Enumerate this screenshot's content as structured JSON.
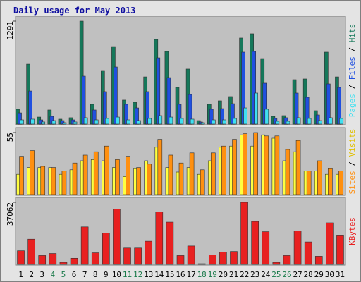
{
  "chart_data": {
    "type": "bar",
    "title": "Daily usage for May 2013",
    "categories": [
      "1",
      "2",
      "3",
      "4",
      "5",
      "6",
      "7",
      "8",
      "9",
      "10",
      "11",
      "12",
      "13",
      "14",
      "15",
      "16",
      "17",
      "18",
      "19",
      "20",
      "21",
      "22",
      "23",
      "24",
      "25",
      "26",
      "27",
      "28",
      "29",
      "30",
      "31"
    ],
    "category_colors": [
      "#000000",
      "#000000",
      "#000000",
      "#1a7a4a",
      "#1a7a4a",
      "#000000",
      "#000000",
      "#000000",
      "#000000",
      "#000000",
      "#1a7a4a",
      "#1a7a4a",
      "#000000",
      "#000000",
      "#000000",
      "#000000",
      "#000000",
      "#1a7a4a",
      "#1a7a4a",
      "#000000",
      "#000000",
      "#000000",
      "#000000",
      "#000000",
      "#1a7a4a",
      "#1a7a4a",
      "#000000",
      "#000000",
      "#000000",
      "#000000",
      "#000000"
    ],
    "legend_separator": " / ",
    "panels": [
      {
        "ylim": [
          0,
          1291
        ],
        "yticks": [
          1291
        ],
        "series": [
          {
            "name": "Pages",
            "color": "#40e0f0",
            "values": [
              53,
              62,
              27,
              44,
              18,
              27,
              80,
              53,
              71,
              88,
              53,
              44,
              71,
              106,
              88,
              71,
              62,
              18,
              53,
              53,
              71,
              203,
              389,
              186,
              35,
              35,
              80,
              71,
              44,
              80,
              71
            ]
          },
          {
            "name": "Files",
            "color": "#2050e0",
            "values": [
              141,
              415,
              53,
              97,
              44,
              53,
              601,
              177,
              407,
              716,
              248,
              203,
              407,
              831,
              583,
              248,
              371,
              27,
              186,
              194,
              256,
              902,
              911,
              513,
              71,
              80,
              389,
              336,
              115,
              504,
              460
            ]
          },
          {
            "name": "Hits",
            "color": "#15785a",
            "values": [
              186,
              751,
              88,
              177,
              62,
              80,
              1291,
              248,
              672,
              972,
              301,
              274,
              592,
              1061,
              911,
              460,
              690,
              44,
              248,
              292,
              345,
              1079,
              1132,
              822,
              97,
              106,
              557,
              566,
              168,
              902,
              592
            ]
          }
        ]
      },
      {
        "ylim": [
          0,
          55
        ],
        "yticks": [
          55
        ],
        "series": [
          {
            "name": "Sites",
            "color": "#ff9010",
            "values": [
              34,
              39,
              25,
              24,
              21,
              28,
              35,
              38,
              43,
              31,
              34,
              24,
              27,
              49,
              35,
              28,
              37,
              22,
              37,
              43,
              49,
              54,
              55,
              52,
              52,
              40,
              48,
              21,
              30,
              23,
              21
            ]
          },
          {
            "name": "Visits",
            "color": "#ffff40",
            "values": [
              18,
              24,
              24,
              24,
              18,
              22,
              30,
              31,
              30,
              24,
              16,
              23,
              30,
              42,
              24,
              20,
              24,
              18,
              30,
              42,
              43,
              53,
              43,
              53,
              50,
              30,
              38,
              21,
              21,
              18,
              18
            ]
          }
        ]
      },
      {
        "ylim": [
          0,
          37062
        ],
        "yticks": [
          37062
        ],
        "series": [
          {
            "name": "KBytes",
            "color": "#e82020",
            "values": [
              8146,
              15068,
              5294,
              6516,
              1222,
              3665,
              22400,
              6924,
              18734,
              32989,
              9774,
              9774,
              13847,
              31360,
              25251,
              5294,
              10996,
              407,
              5702,
              7331,
              7738,
              37062,
              25658,
              19549,
              1222,
              5294,
              19957,
              13440,
              4887,
              24844,
              17106
            ]
          }
        ]
      }
    ]
  }
}
